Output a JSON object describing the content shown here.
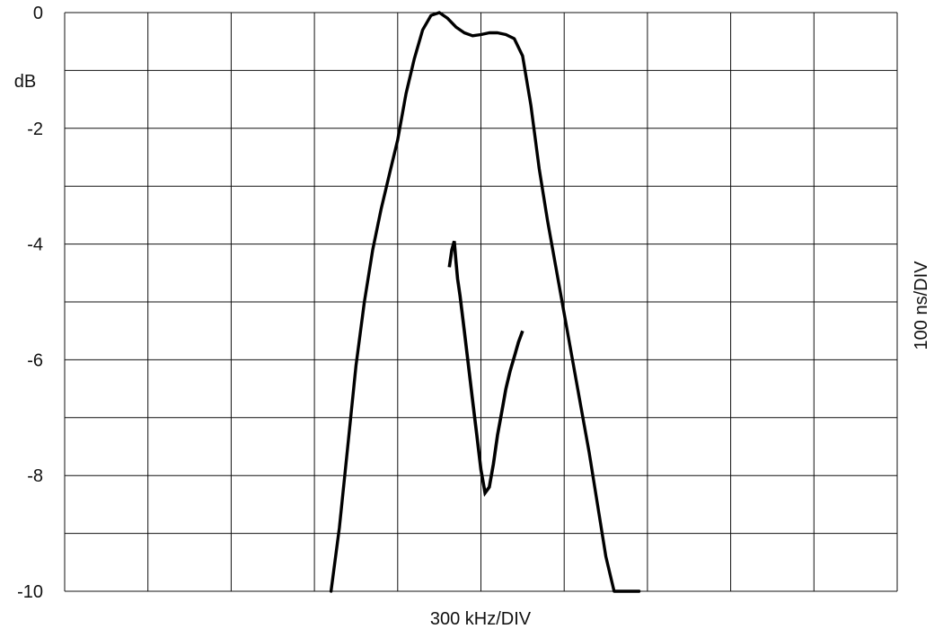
{
  "chart_data": {
    "type": "line",
    "title": "",
    "xlabel": "300 kHz/DIV",
    "ylabel": "dB",
    "y2label": "100 ns/DIV",
    "x_divisions": 10,
    "y_divisions": 10,
    "xlim": [
      0,
      10
    ],
    "ylim": [
      -10,
      0
    ],
    "y_ticks": [
      {
        "value": 0,
        "label": "0"
      },
      {
        "value": -2,
        "label": "-2"
      },
      {
        "value": -4,
        "label": "-4"
      },
      {
        "value": -6,
        "label": "-6"
      },
      {
        "value": -8,
        "label": "-8"
      },
      {
        "value": -10,
        "label": "-10"
      }
    ],
    "grid": true,
    "series": [
      {
        "x": [
          3.2,
          3.3,
          3.4,
          3.5,
          3.6,
          3.7,
          3.8,
          3.9,
          4.0,
          4.1,
          4.2,
          4.3,
          4.4,
          4.5,
          4.6,
          4.7,
          4.8,
          4.9,
          5.0,
          5.1,
          5.2,
          5.3,
          5.4,
          5.5,
          5.6,
          5.7,
          5.8,
          6.0,
          6.2,
          6.3,
          6.4,
          6.5,
          6.6,
          6.7,
          6.8,
          6.9
        ],
        "y": [
          -10.0,
          -8.9,
          -7.5,
          -6.1,
          -5.0,
          -4.1,
          -3.4,
          -2.8,
          -2.2,
          -1.4,
          -0.8,
          -0.3,
          -0.05,
          0.0,
          -0.1,
          -0.25,
          -0.35,
          -0.4,
          -0.38,
          -0.35,
          -0.35,
          -0.38,
          -0.45,
          -0.75,
          -1.6,
          -2.7,
          -3.6,
          -5.2,
          -6.8,
          -7.6,
          -8.5,
          -9.4,
          -10.0,
          -10.0,
          -10.0,
          -10.0
        ]
      },
      {
        "x": [
          4.62,
          4.65,
          4.68,
          4.7,
          4.72,
          4.75,
          4.8,
          4.85,
          4.9,
          4.95,
          5.0,
          5.05,
          5.1,
          5.15,
          5.2,
          5.25,
          5.3,
          5.35,
          5.4,
          5.45,
          5.5
        ],
        "y": [
          -4.4,
          -4.1,
          -3.95,
          -4.3,
          -4.6,
          -4.9,
          -5.5,
          -6.1,
          -6.7,
          -7.3,
          -7.9,
          -8.3,
          -8.2,
          -7.8,
          -7.3,
          -6.9,
          -6.5,
          -6.2,
          -5.95,
          -5.7,
          -5.5
        ]
      }
    ]
  }
}
